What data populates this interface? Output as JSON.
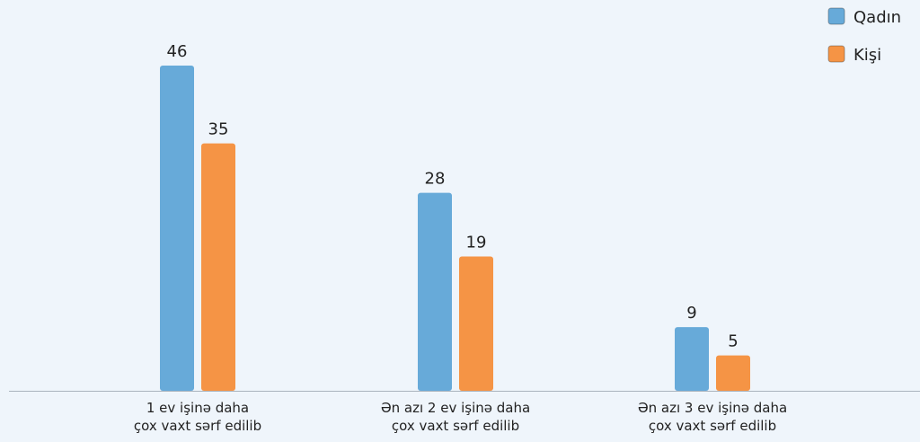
{
  "chart_data": {
    "type": "bar",
    "categories": [
      "1 ev işinə daha\nçox vaxt sərf edilib",
      "Ən azı 2 ev işinə daha\nçox vaxt sərf edilib",
      "Ən azı 3 ev işinə daha\nçox vaxt sərf edilib"
    ],
    "series": [
      {
        "name": "Qadın",
        "color": "#67aad9",
        "values": [
          46,
          28,
          9
        ]
      },
      {
        "name": "Kişi",
        "color": "#f59445",
        "values": [
          35,
          19,
          5
        ]
      }
    ],
    "legend": "top-right"
  }
}
